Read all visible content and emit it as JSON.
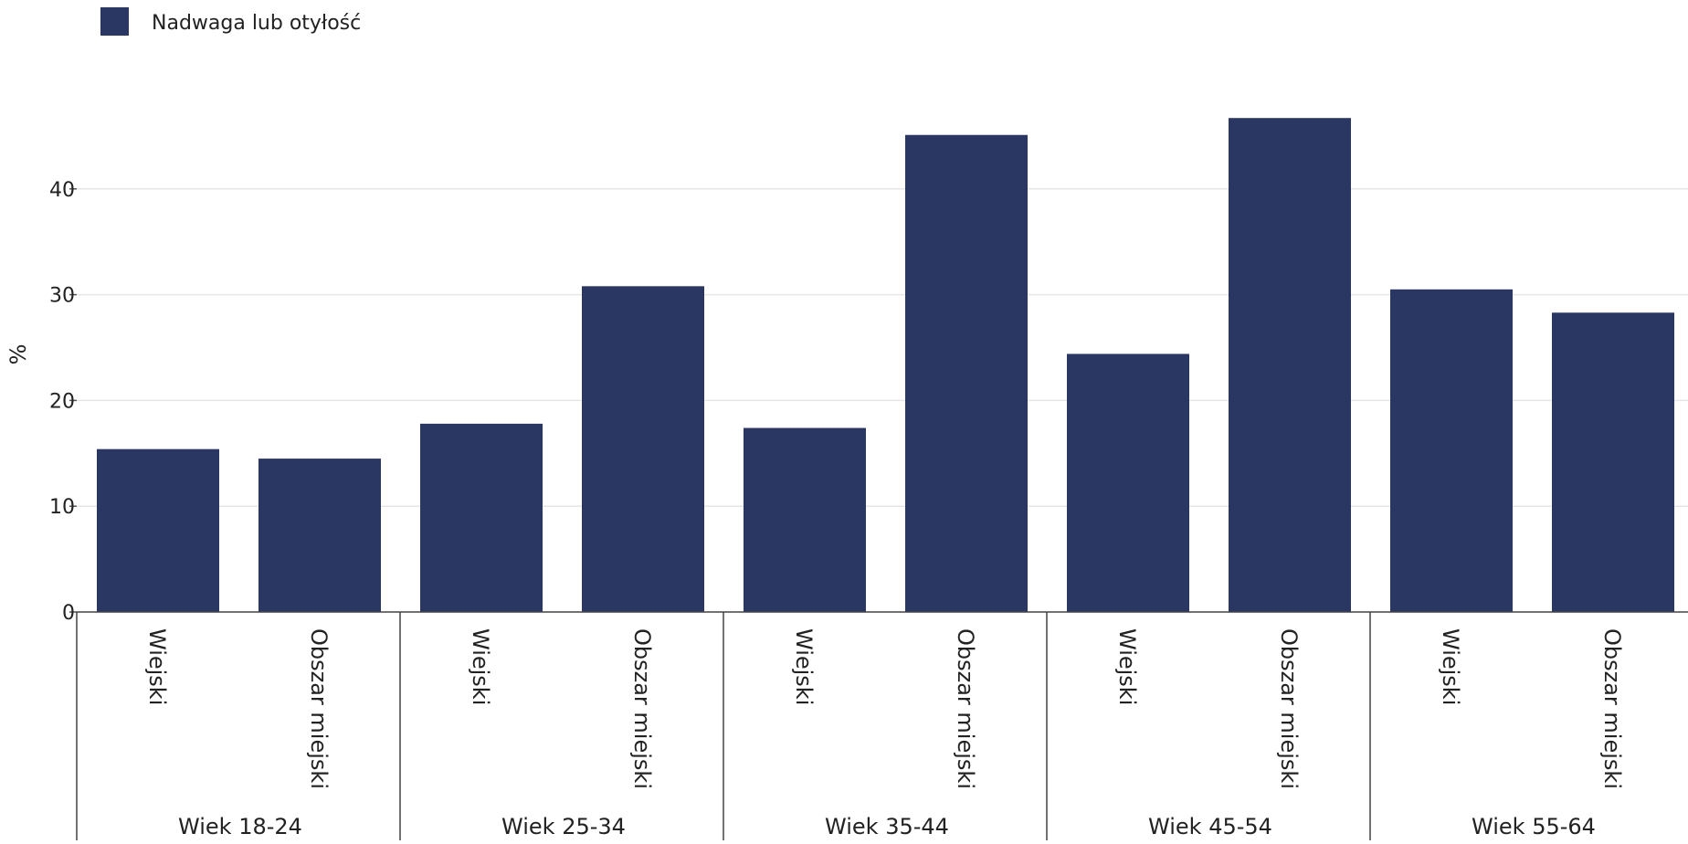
{
  "chart_data": {
    "type": "bar",
    "legend": {
      "position": "top-left",
      "entries": [
        "Nadwaga lub otyłość"
      ]
    },
    "ylabel": "%",
    "ylim": [
      0,
      50
    ],
    "yticks": [
      0,
      10,
      20,
      30,
      40
    ],
    "grid": true,
    "groups": [
      {
        "label": "Wiek 18-24",
        "categories": [
          "Wiejski",
          "Obszar miejski"
        ]
      },
      {
        "label": "Wiek 25-34",
        "categories": [
          "Wiejski",
          "Obszar miejski"
        ]
      },
      {
        "label": "Wiek 35-44",
        "categories": [
          "Wiejski",
          "Obszar miejski"
        ]
      },
      {
        "label": "Wiek 45-54",
        "categories": [
          "Wiejski",
          "Obszar miejski"
        ]
      },
      {
        "label": "Wiek 55-64",
        "categories": [
          "Wiejski",
          "Obszar miejski"
        ]
      }
    ],
    "series": [
      {
        "name": "Nadwaga lub otyłość",
        "color": "#2b3763",
        "values": [
          15.4,
          14.5,
          17.8,
          30.8,
          17.4,
          45.1,
          24.4,
          46.7,
          30.5,
          28.3
        ]
      }
    ]
  }
}
